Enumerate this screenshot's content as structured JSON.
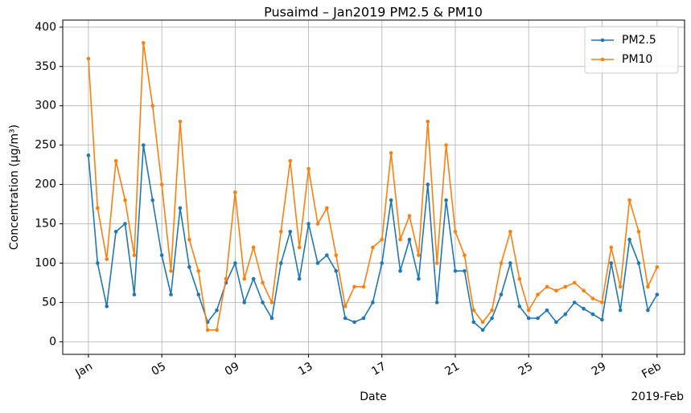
{
  "chart_data": {
    "type": "line",
    "title": "Pusaimd – Jan2019 PM2.5 & PM10",
    "x_label": "Date",
    "y_label": "Concentration (µg/m³)",
    "x_offset_label": "2019-Feb",
    "x": [
      1,
      1.5,
      2,
      2.5,
      3,
      3.5,
      4,
      4.5,
      5,
      5.5,
      6,
      6.5,
      7,
      7.5,
      8,
      8.5,
      9,
      9.5,
      10,
      10.5,
      11,
      11.5,
      12,
      12.5,
      13,
      13.5,
      14,
      14.5,
      15,
      15.5,
      16,
      16.5,
      17,
      17.5,
      18,
      18.5,
      19,
      19.5,
      20,
      20.5,
      21,
      21.5,
      22,
      22.5,
      23,
      23.5,
      24,
      24.5,
      25,
      25.5,
      26,
      26.5,
      27,
      27.5,
      28,
      28.5,
      29,
      29.5,
      30,
      30.5,
      31,
      31.5,
      32
    ],
    "series": [
      {
        "name": "PM2.5",
        "color": "#1f77b4",
        "values": [
          237,
          100,
          45,
          140,
          150,
          60,
          250,
          180,
          110,
          60,
          170,
          95,
          60,
          25,
          40,
          75,
          100,
          50,
          80,
          50,
          30,
          100,
          140,
          80,
          150,
          100,
          110,
          90,
          30,
          25,
          30,
          50,
          100,
          180,
          90,
          130,
          80,
          200,
          50,
          180,
          90,
          90,
          25,
          15,
          30,
          60,
          100,
          45,
          30,
          30,
          40,
          25,
          35,
          50,
          42,
          35,
          28,
          100,
          40,
          130,
          100,
          40,
          60
        ]
      },
      {
        "name": "PM10",
        "color": "#ff7f0e",
        "values": [
          360,
          170,
          105,
          230,
          180,
          110,
          380,
          300,
          200,
          90,
          280,
          130,
          90,
          15,
          15,
          80,
          190,
          80,
          120,
          75,
          50,
          140,
          230,
          120,
          220,
          150,
          170,
          110,
          45,
          70,
          70,
          120,
          130,
          240,
          130,
          160,
          110,
          280,
          100,
          250,
          140,
          110,
          40,
          25,
          40,
          100,
          140,
          80,
          40,
          60,
          70,
          65,
          70,
          75,
          65,
          55,
          50,
          120,
          70,
          180,
          140,
          70,
          95
        ]
      }
    ],
    "xlim": [
      -0.4,
      33.5
    ],
    "ylim": [
      -16,
      409
    ],
    "xticks": [
      {
        "value": 1,
        "label": "Jan"
      },
      {
        "value": 5,
        "label": "05"
      },
      {
        "value": 9,
        "label": "09"
      },
      {
        "value": 13,
        "label": "13"
      },
      {
        "value": 17,
        "label": "17"
      },
      {
        "value": 21,
        "label": "21"
      },
      {
        "value": 25,
        "label": "25"
      },
      {
        "value": 29,
        "label": "29"
      },
      {
        "value": 32,
        "label": "Feb"
      }
    ],
    "yticks": [
      0,
      50,
      100,
      150,
      200,
      250,
      300,
      350,
      400
    ],
    "grid": true,
    "legend": "upper right"
  }
}
